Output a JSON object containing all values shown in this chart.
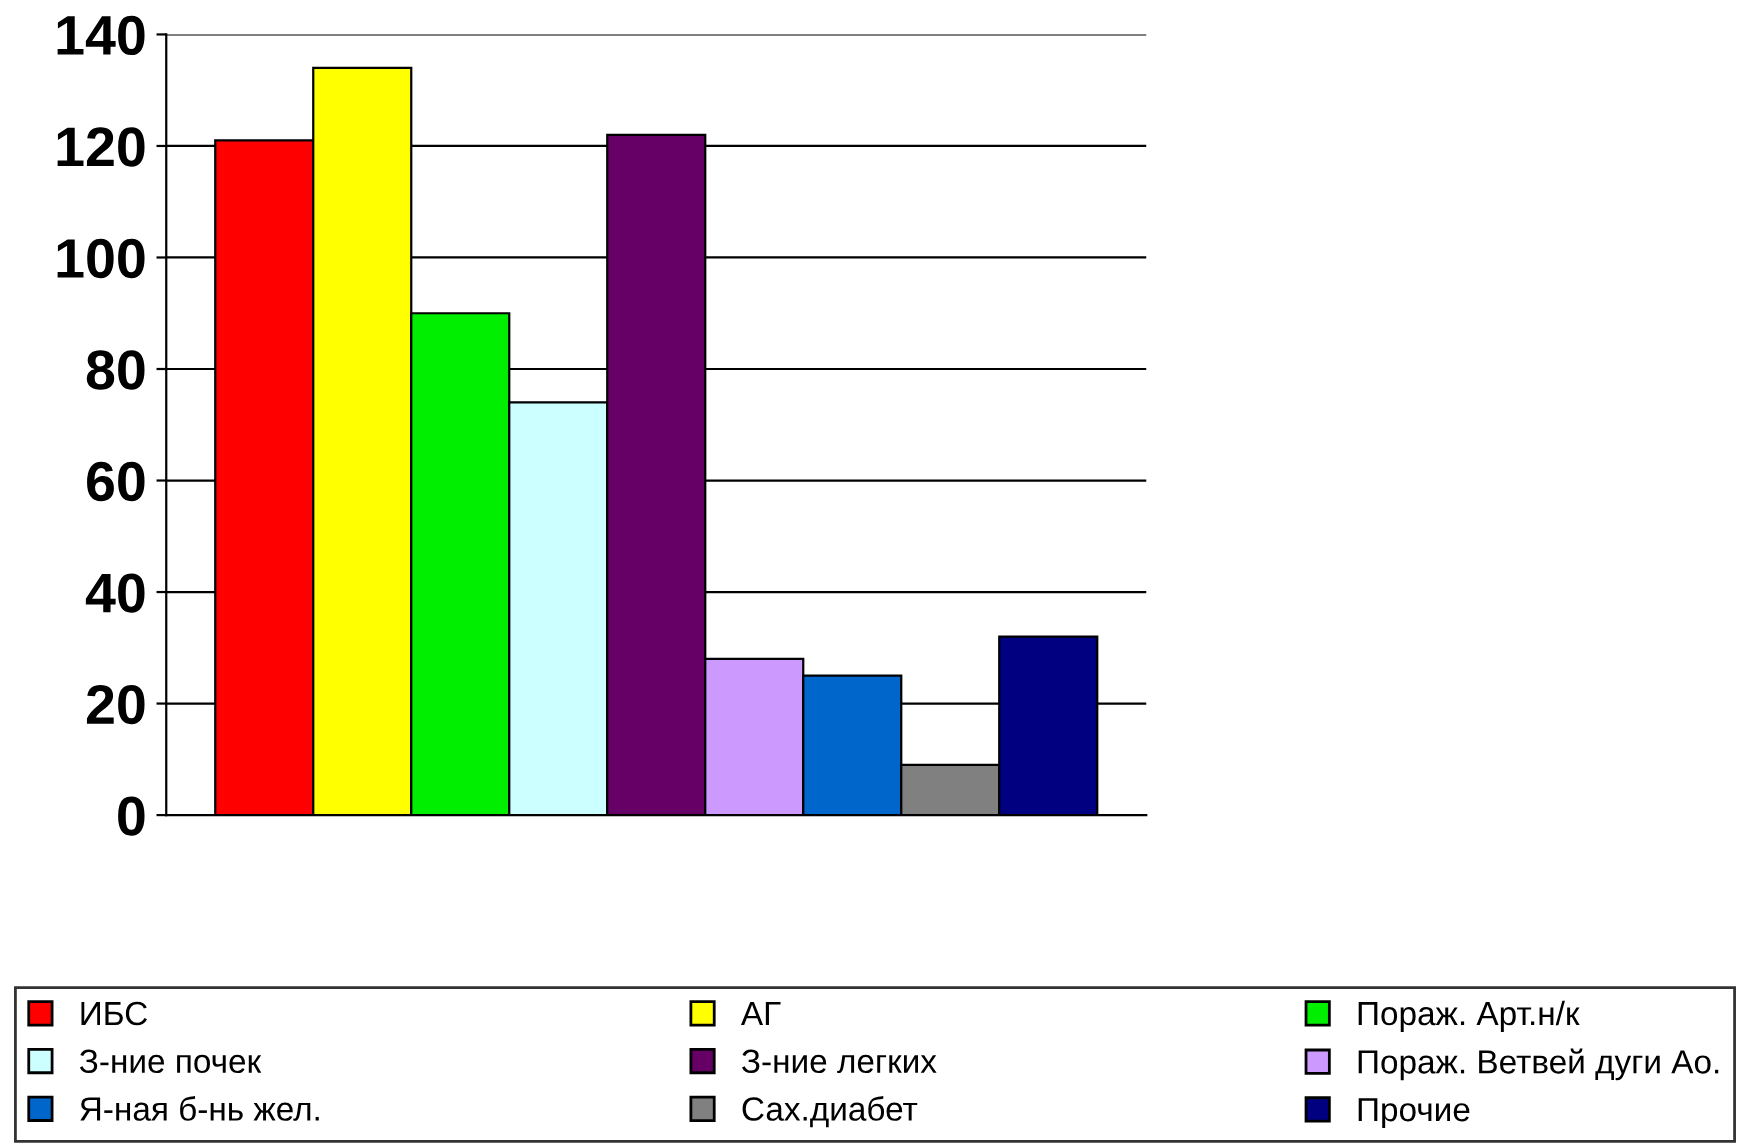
{
  "chart_data": {
    "type": "bar",
    "categories": [
      null
    ],
    "series": [
      {
        "name": "ИБС",
        "color": "#ff0000",
        "values": [
          121
        ]
      },
      {
        "name": "АГ",
        "color": "#ffff00",
        "values": [
          134
        ]
      },
      {
        "name": "Пораж. Арт.н/к",
        "color": "#00ee00",
        "values": [
          90
        ]
      },
      {
        "name": "З-ние почек",
        "color": "#ccffff",
        "values": [
          74
        ]
      },
      {
        "name": "З-ние легких",
        "color": "#660066",
        "values": [
          122
        ]
      },
      {
        "name": "Пораж. Ветвей дуги Ао.",
        "color": "#cc99ff",
        "values": [
          28
        ]
      },
      {
        "name": "Я-ная б-нь жел.",
        "color": "#0066cc",
        "values": [
          25
        ]
      },
      {
        "name": "Сах.диабет",
        "color": "#808080",
        "values": [
          9
        ]
      },
      {
        "name": "Прочие",
        "color": "#000080",
        "values": [
          32
        ]
      }
    ],
    "ylim": [
      0,
      140
    ],
    "yticks": [
      0,
      20,
      40,
      60,
      80,
      100,
      120,
      140
    ],
    "grid": "y",
    "legend": "bottom"
  }
}
